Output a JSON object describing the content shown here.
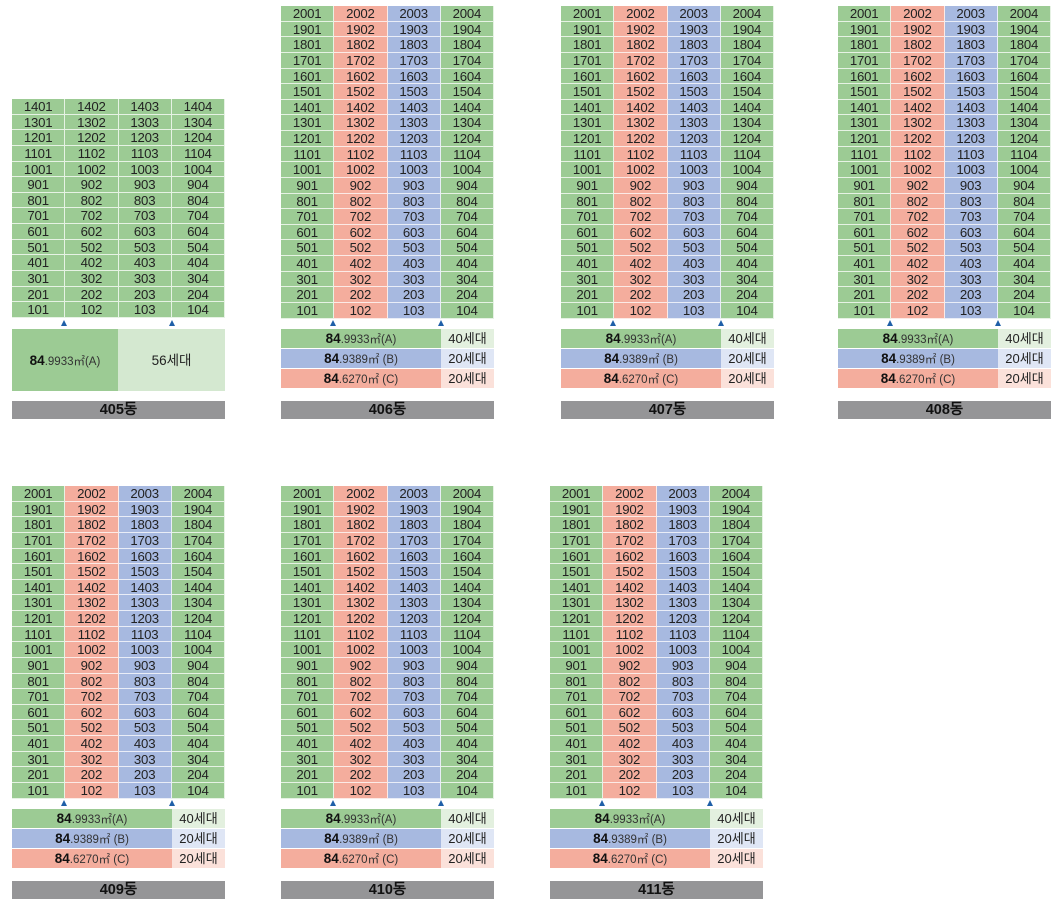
{
  "buildings": [
    {
      "name": "405동",
      "floors": 14,
      "legend": [
        {
          "area_main": "84",
          "area_rest": ".9933㎡(A)",
          "count": "56세대"
        }
      ]
    },
    {
      "name": "406동",
      "floors": 20,
      "legend": [
        {
          "area_main": "84",
          "area_rest": ".9933㎡(A)",
          "count": "40세대"
        },
        {
          "area_main": "84",
          "area_rest": ".9389㎡ (B)",
          "count": "20세대"
        },
        {
          "area_main": "84",
          "area_rest": ".6270㎡ (C)",
          "count": "20세대"
        }
      ]
    },
    {
      "name": "407동",
      "floors": 20,
      "legend": [
        {
          "area_main": "84",
          "area_rest": ".9933㎡(A)",
          "count": "40세대"
        },
        {
          "area_main": "84",
          "area_rest": ".9389㎡ (B)",
          "count": "20세대"
        },
        {
          "area_main": "84",
          "area_rest": ".6270㎡ (C)",
          "count": "20세대"
        }
      ]
    },
    {
      "name": "408동",
      "floors": 20,
      "legend": [
        {
          "area_main": "84",
          "area_rest": ".9933㎡(A)",
          "count": "40세대"
        },
        {
          "area_main": "84",
          "area_rest": ".9389㎡ (B)",
          "count": "20세대"
        },
        {
          "area_main": "84",
          "area_rest": ".6270㎡ (C)",
          "count": "20세대"
        }
      ]
    },
    {
      "name": "409동",
      "floors": 20,
      "legend": [
        {
          "area_main": "84",
          "area_rest": ".9933㎡(A)",
          "count": "40세대"
        },
        {
          "area_main": "84",
          "area_rest": ".9389㎡ (B)",
          "count": "20세대"
        },
        {
          "area_main": "84",
          "area_rest": ".6270㎡ (C)",
          "count": "20세대"
        }
      ]
    },
    {
      "name": "410동",
      "floors": 20,
      "legend": [
        {
          "area_main": "84",
          "area_rest": ".9933㎡(A)",
          "count": "40세대"
        },
        {
          "area_main": "84",
          "area_rest": ".9389㎡ (B)",
          "count": "20세대"
        },
        {
          "area_main": "84",
          "area_rest": ".6270㎡ (C)",
          "count": "20세대"
        }
      ]
    },
    {
      "name": "411동",
      "floors": 20,
      "legend": [
        {
          "area_main": "84",
          "area_rest": ".9933㎡(A)",
          "count": "40세대"
        },
        {
          "area_main": "84",
          "area_rest": ".9389㎡ (B)",
          "count": "20세대"
        },
        {
          "area_main": "84",
          "area_rest": ".6270㎡ (C)",
          "count": "20세대"
        }
      ]
    }
  ],
  "colors": {
    "type_a": "#9ccb94",
    "type_b": "#a7b9e0",
    "type_c": "#f4ad9d",
    "label_bar": "#959597",
    "entrance_arrow": "#1f5fa8"
  }
}
